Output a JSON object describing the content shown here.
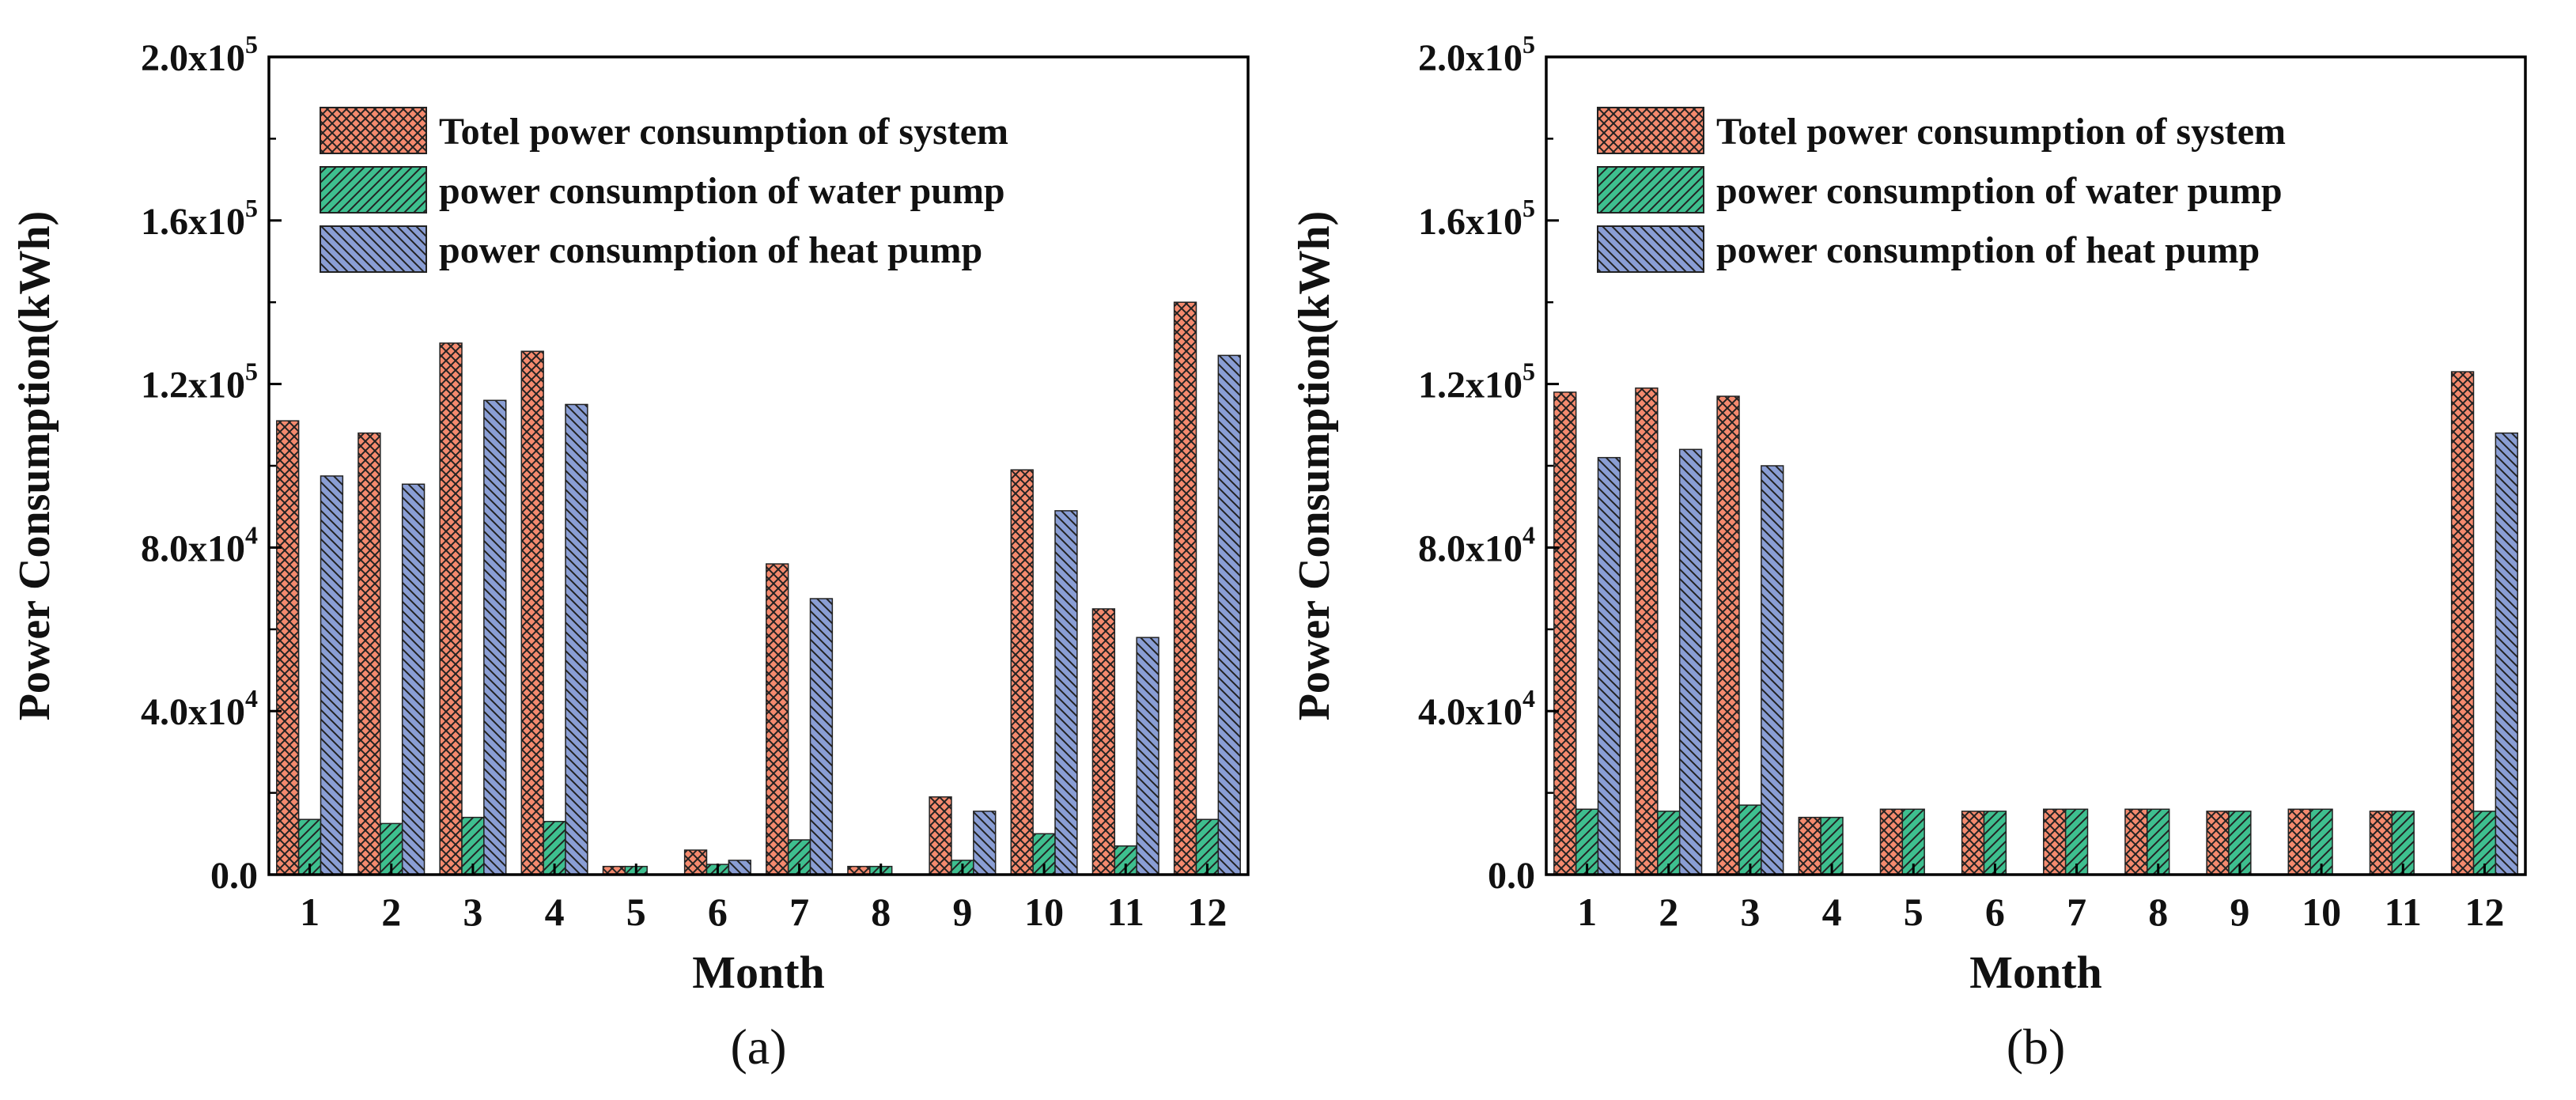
{
  "colors": {
    "total": "#f48a6e",
    "water": "#3ebf8f",
    "heat": "#8a9ed4",
    "hatch": "#222222",
    "axis": "#000000"
  },
  "chart_data": [
    {
      "type": "bar",
      "panel_label": "(a)",
      "xlabel": "Month",
      "ylabel": "Power Consumption(kWh)",
      "ylim": [
        0,
        200000
      ],
      "yticks": [
        {
          "value": 0,
          "base": "0.0",
          "exp": ""
        },
        {
          "value": 40000,
          "base": "4.0x10",
          "exp": "4"
        },
        {
          "value": 80000,
          "base": "8.0x10",
          "exp": "4"
        },
        {
          "value": 120000,
          "base": "1.2x10",
          "exp": "5"
        },
        {
          "value": 160000,
          "base": "1.6x10",
          "exp": "5"
        },
        {
          "value": 200000,
          "base": "2.0x10",
          "exp": "5"
        }
      ],
      "categories": [
        "1",
        "2",
        "3",
        "4",
        "5",
        "6",
        "7",
        "8",
        "9",
        "10",
        "11",
        "12"
      ],
      "series": [
        {
          "key": "total",
          "name": "Totel power consumption of system",
          "values": [
            111000,
            108000,
            130000,
            128000,
            2000,
            6000,
            76000,
            2000,
            19000,
            99000,
            65000,
            140000
          ]
        },
        {
          "key": "water",
          "name": "power consumption of water pump",
          "values": [
            13500,
            12500,
            14000,
            13000,
            2000,
            2500,
            8500,
            2000,
            3500,
            10000,
            7000,
            13500
          ]
        },
        {
          "key": "heat",
          "name": "power consumption of heat pump",
          "values": [
            97500,
            95500,
            116000,
            115000,
            0,
            3500,
            67500,
            0,
            15500,
            89000,
            58000,
            127000
          ]
        }
      ]
    },
    {
      "type": "bar",
      "panel_label": "(b)",
      "xlabel": "Month",
      "ylabel": "Power Consumption(kWh)",
      "ylim": [
        0,
        200000
      ],
      "yticks": [
        {
          "value": 0,
          "base": "0.0",
          "exp": ""
        },
        {
          "value": 40000,
          "base": "4.0x10",
          "exp": "4"
        },
        {
          "value": 80000,
          "base": "8.0x10",
          "exp": "4"
        },
        {
          "value": 120000,
          "base": "1.2x10",
          "exp": "5"
        },
        {
          "value": 160000,
          "base": "1.6x10",
          "exp": "5"
        },
        {
          "value": 200000,
          "base": "2.0x10",
          "exp": "5"
        }
      ],
      "categories": [
        "1",
        "2",
        "3",
        "4",
        "5",
        "6",
        "7",
        "8",
        "9",
        "10",
        "11",
        "12"
      ],
      "series": [
        {
          "key": "total",
          "name": "Totel power consumption of system",
          "values": [
            118000,
            119000,
            117000,
            14000,
            16000,
            15500,
            16000,
            16000,
            15500,
            16000,
            15500,
            123000
          ]
        },
        {
          "key": "water",
          "name": "power consumption of water pump",
          "values": [
            16000,
            15500,
            17000,
            14000,
            16000,
            15500,
            16000,
            16000,
            15500,
            16000,
            15500,
            15500
          ]
        },
        {
          "key": "heat",
          "name": "power consumption of heat pump",
          "values": [
            102000,
            104000,
            100000,
            0,
            0,
            0,
            0,
            0,
            0,
            0,
            0,
            108000
          ]
        }
      ]
    }
  ]
}
